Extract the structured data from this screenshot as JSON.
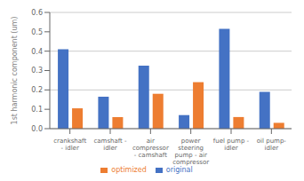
{
  "chart_data": {
    "type": "bar",
    "ylabel": "1st harmonic component (um)",
    "categories": [
      "crankshaft\n- idler",
      "camshaft -\nidler",
      "air\ncompressor\n- camshaft",
      "power\nsteering\npump - air\ncompressor",
      "fuel pump -\nidler",
      "oil pump-\nidler"
    ],
    "series": [
      {
        "name": "original",
        "color": "#4472c4",
        "values": [
          0.41,
          0.165,
          0.325,
          0.07,
          0.515,
          0.19
        ]
      },
      {
        "name": "optimized",
        "color": "#ed7d31",
        "values": [
          0.105,
          0.06,
          0.18,
          0.24,
          0.06,
          0.03
        ]
      }
    ],
    "ylim": [
      0,
      0.6
    ],
    "yticks": [
      {
        "value": 0,
        "label": "0.0"
      },
      0.1,
      0.2,
      0.3,
      0.4,
      0.5,
      0.6
    ],
    "grid": true,
    "legend": "bottom"
  }
}
